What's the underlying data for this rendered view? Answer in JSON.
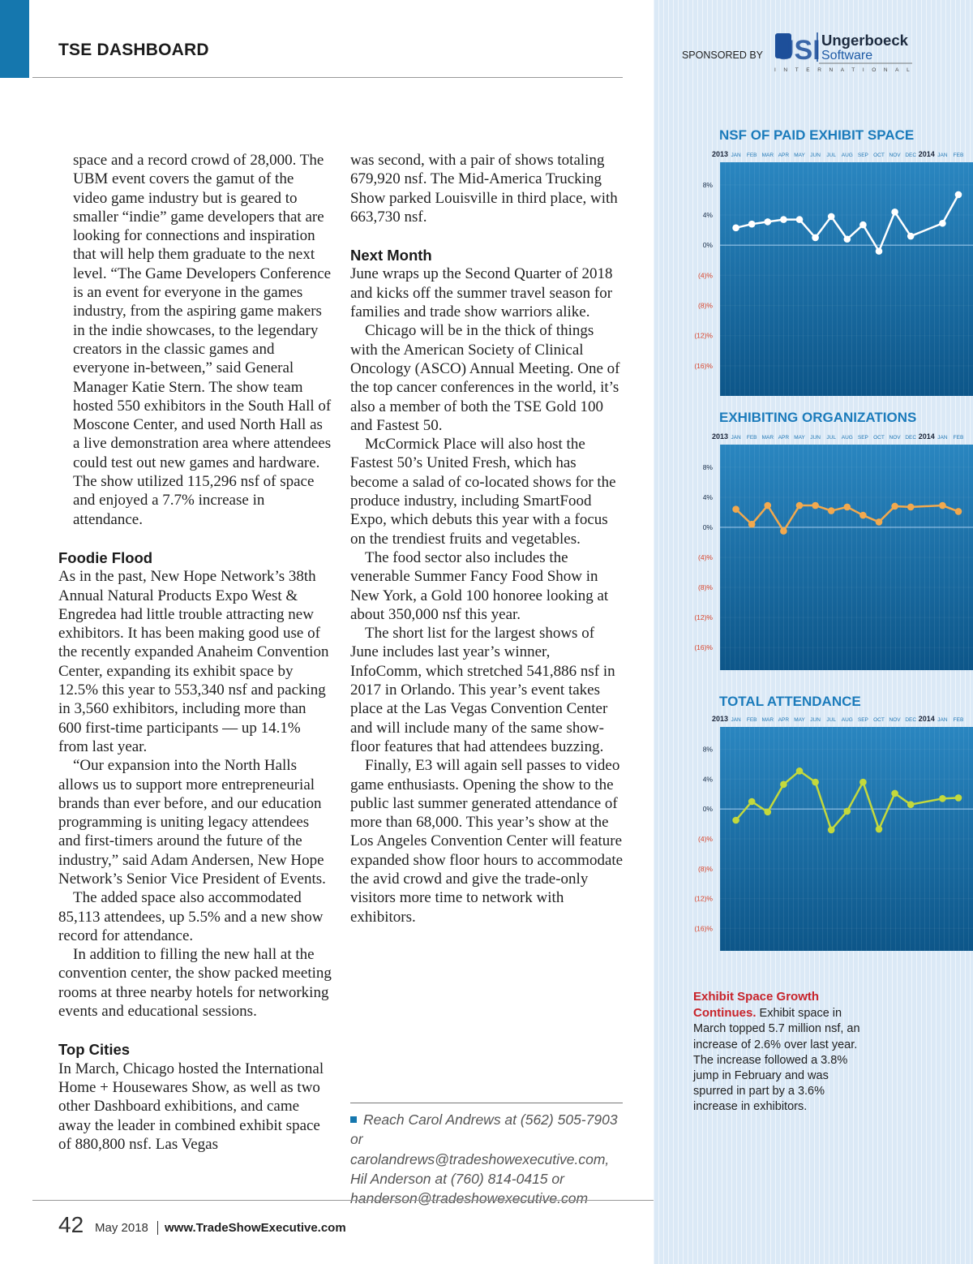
{
  "header": {
    "title": "TSE DASHBOARD",
    "sponsor_label": "SPONSORED BY",
    "sponsor_logo": {
      "mark": "USI",
      "name": "Ungerboeck",
      "product": "Software",
      "region": "INTERNATIONAL"
    }
  },
  "article": {
    "column_1": [
      {
        "paragraphs": [
          "space and a record crowd of 28,000. The UBM event covers the gamut of the video game industry but is geared to smaller “indie” game developers that are looking for connections and inspiration that will help them graduate to the next level. “The Game Developers Conference is an event for everyone in the games industry, from the aspiring game makers in the indie showcases, to the legendary creators in the classic games and everyone in-between,” said General Manager Katie Stern. The show team hosted 550 exhibitors in the South Hall of Moscone Center, and used North Hall as a live demonstration area where attendees could test out new games and hardware. The show utilized 115,296 nsf of space and enjoyed a 7.7% increase in attendance."
        ]
      },
      {
        "heading": "Foodie Flood",
        "paragraphs": [
          "As in the past, New Hope Network’s 38th Annual Natural Products Expo West & Engredea had little trouble attracting new exhibitors. It has been making good use of the recently expanded Anaheim Convention Center, expanding its exhibit space by 12.5% this year to 553,340 nsf and packing in 3,560 exhibitors, including more than 600 first-time participants — up 14.1% from last year.",
          "“Our expansion into the North Halls allows us to support more entrepreneurial brands than ever before, and our education programming is uniting legacy attendees and first-timers around the future of the industry,” said Adam Andersen, New Hope Network’s Senior Vice President of Events.",
          "The added space also accommodated 85,113 attendees, up 5.5% and a new show record for attendance.",
          "In addition to filling the new hall at the convention center, the show packed meeting rooms at three nearby hotels for networking events and educational sessions."
        ]
      },
      {
        "heading": "Top Cities",
        "paragraphs": [
          "In March, Chicago hosted the International Home + Housewares Show, as well as two other Dashboard exhibitions, and came away the leader in combined exhibit space of 880,800 nsf. Las Vegas"
        ]
      }
    ],
    "column_2": [
      {
        "paragraphs": [
          "was second, with a pair of shows totaling 679,920 nsf. The Mid-America Trucking Show parked Louisville in third place, with 663,730 nsf."
        ]
      },
      {
        "heading": "Next Month",
        "paragraphs": [
          "June wraps up the Second Quarter of 2018 and kicks off the summer travel season for families and trade show warriors alike.",
          "Chicago will be in the thick of things with the American Society of Clinical Oncology (ASCO) Annual Meeting. One of the top cancer conferences in the world, it’s also a member of both the TSE Gold 100 and Fastest 50.",
          "McCormick Place will also host the Fastest 50’s United Fresh, which has become a salad of co-located shows for the produce industry, including SmartFood Expo, which debuts this year with a focus on the trendiest fruits and vegetables.",
          "The food sector also includes the venerable Summer Fancy Food Show in New York, a Gold 100 honoree looking at about 350,000 nsf this year.",
          "The short list for the largest shows of June includes last year’s winner, InfoComm, which stretched 541,886 nsf in 2017 in Orlando. This year’s event takes place at the Las Vegas Convention Center and will include many of the same show-floor features that had attendees buzzing.",
          "Finally, E3 will again sell passes to video game enthusiasts. Opening the show to the public last summer generated attendance of more than 68,000. This year’s show at the Los Angeles Convention Center will feature expanded show floor hours to accommodate the avid crowd and give the trade-only visitors more time to network with exhibitors."
        ]
      }
    ],
    "contact": "Reach Carol Andrews at (562) 505-7903 or carolandrews@tradeshowexecutive.com, Hil Anderson at (760) 814-0415 or handerson@tradeshowexecutive.com"
  },
  "sidebar": {
    "caption_title": "Exhibit Space Growth Continues.",
    "caption_text": "Exhibit space in March topped 5.7 million nsf, an increase of 2.6% over last year. The increase followed a 3.8% jump in February and was spurred in part by a 3.6% increase in exhibitors."
  },
  "footer": {
    "page": "42",
    "issue": "May 2018",
    "site": "www.TradeShowExecutive.com"
  },
  "chart_data": [
    {
      "type": "line",
      "title": "NSF OF PAID EXHIBIT SPACE",
      "color": "#ffffff",
      "year_groups": [
        {
          "label": "2013",
          "categories": [
            "JAN",
            "FEB",
            "MAR",
            "APR",
            "MAY",
            "JUN",
            "JUL",
            "AUG",
            "SEP",
            "OCT",
            "NOV",
            "DEC"
          ],
          "values": [
            2.3,
            2.8,
            3.1,
            3.4,
            3.4,
            1.0,
            3.8,
            0.8,
            2.7,
            -0.8,
            4.4,
            1.2
          ]
        },
        {
          "label": "2014",
          "categories": [
            "JAN",
            "FEB"
          ],
          "values": [
            2.9,
            6.7
          ]
        }
      ],
      "ylim": [
        -20,
        11
      ],
      "yticks": [
        {
          "value": 8,
          "label": "8%"
        },
        {
          "value": 4,
          "label": "4%"
        },
        {
          "value": 0,
          "label": "0%"
        },
        {
          "value": -4,
          "label": "(4)%"
        },
        {
          "value": -8,
          "label": "(8)%"
        },
        {
          "value": -12,
          "label": "(12)%"
        },
        {
          "value": -16,
          "label": "(16)%"
        }
      ]
    },
    {
      "type": "line",
      "title": "EXHIBITING ORGANIZATIONS",
      "color": "#f2a94e",
      "year_groups": [
        {
          "label": "2013",
          "categories": [
            "JAN",
            "FEB",
            "MAR",
            "APR",
            "MAY",
            "JUN",
            "JUL",
            "AUG",
            "SEP",
            "OCT",
            "NOV",
            "DEC"
          ],
          "values": [
            2.4,
            0.4,
            2.9,
            -0.5,
            2.9,
            2.9,
            2.2,
            2.7,
            1.6,
            0.7,
            2.8,
            2.7
          ]
        },
        {
          "label": "2014",
          "categories": [
            "JAN",
            "FEB"
          ],
          "values": [
            2.9,
            2.1
          ]
        }
      ],
      "ylim": [
        -19,
        11
      ],
      "yticks": [
        {
          "value": 8,
          "label": "8%"
        },
        {
          "value": 4,
          "label": "4%"
        },
        {
          "value": 0,
          "label": "0%"
        },
        {
          "value": -4,
          "label": "(4)%"
        },
        {
          "value": -8,
          "label": "(8)%"
        },
        {
          "value": -12,
          "label": "(12)%"
        },
        {
          "value": -16,
          "label": "(16)%"
        }
      ]
    },
    {
      "type": "line",
      "title": "TOTAL ATTENDANCE",
      "color": "#c4d93c",
      "year_groups": [
        {
          "label": "2013",
          "categories": [
            "JAN",
            "FEB",
            "MAR",
            "APR",
            "MAY",
            "JUN",
            "JUL",
            "AUG",
            "SEP",
            "OCT",
            "NOV",
            "DEC"
          ],
          "values": [
            -1.5,
            1.0,
            -0.4,
            3.3,
            5.1,
            3.6,
            -2.8,
            -0.3,
            3.6,
            -2.7,
            2.1,
            0.6
          ]
        },
        {
          "label": "2014",
          "categories": [
            "JAN",
            "FEB"
          ],
          "values": [
            1.4,
            1.5
          ]
        }
      ],
      "ylim": [
        -19,
        11
      ],
      "yticks": [
        {
          "value": 8,
          "label": "8%"
        },
        {
          "value": 4,
          "label": "4%"
        },
        {
          "value": 0,
          "label": "0%"
        },
        {
          "value": -4,
          "label": "(4)%"
        },
        {
          "value": -8,
          "label": "(8)%"
        },
        {
          "value": -12,
          "label": "(12)%"
        },
        {
          "value": -16,
          "label": "(16)%"
        }
      ]
    }
  ]
}
